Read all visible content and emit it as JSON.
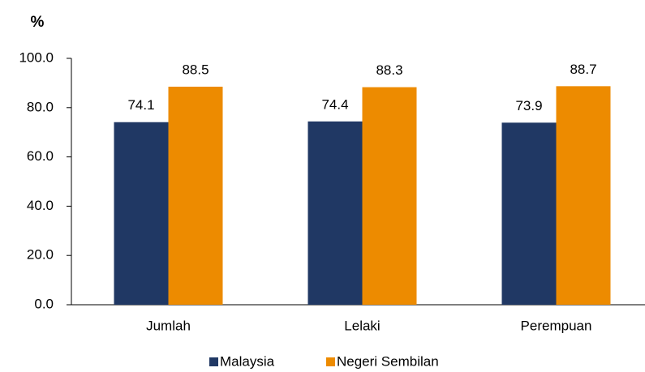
{
  "chart_data": {
    "type": "bar",
    "title": "%",
    "categories": [
      "Jumlah",
      "Lelaki",
      "Perempuan"
    ],
    "series": [
      {
        "name": "Malaysia",
        "color": "#203864",
        "values": [
          74.1,
          74.4,
          73.9
        ]
      },
      {
        "name": "Negeri Sembilan",
        "color": "#ed8b00",
        "values": [
          88.5,
          88.3,
          88.7
        ]
      }
    ],
    "ylim": [
      0,
      100
    ],
    "yticks": [
      {
        "value": 0,
        "label": "0.0"
      },
      {
        "value": 20,
        "label": "20.0"
      },
      {
        "value": 40,
        "label": "40.0"
      },
      {
        "value": 60,
        "label": "60.0"
      },
      {
        "value": 80,
        "label": "80.0"
      },
      {
        "value": 100,
        "label": "100.0"
      }
    ],
    "grid": false,
    "legend": "bottom"
  }
}
